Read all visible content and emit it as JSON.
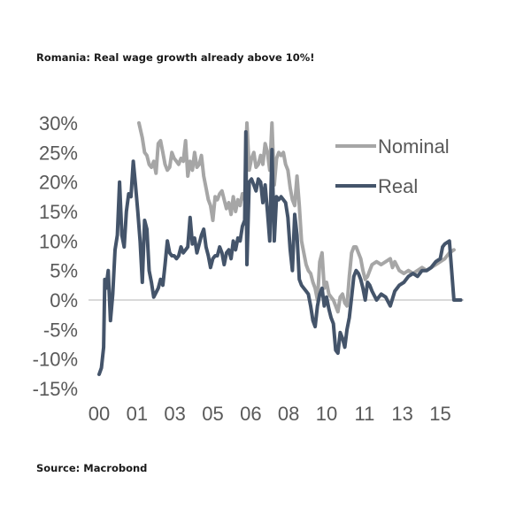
{
  "title": "Romania: Real wage growth already above 10%!",
  "source": "Source: Macrobond",
  "chart_data": {
    "type": "line",
    "title": "Romania: Real wage growth already above 10%!",
    "xlabel": "",
    "ylabel": "",
    "ylim": [
      -15,
      30
    ],
    "xlim": [
      2000.0,
      2016.5
    ],
    "y_ticks": [
      30,
      25,
      20,
      15,
      10,
      5,
      0,
      -5,
      -10,
      -15
    ],
    "y_tick_labels": [
      "30%",
      "25%",
      "20%",
      "15%",
      "10%",
      "5%",
      "0%",
      "-5%",
      "-10%",
      "-15%"
    ],
    "x_ticks": [
      2000.0,
      2001.67,
      2003.33,
      2005.0,
      2006.67,
      2008.33,
      2010.0,
      2011.67,
      2013.33,
      2015.0
    ],
    "x_tick_labels": [
      "00",
      "01",
      "03",
      "05",
      "06",
      "08",
      "10",
      "11",
      "13",
      "15"
    ],
    "grid": false,
    "zero_line": true,
    "legend": {
      "placement": "top-right",
      "entries": [
        "Nominal",
        "Real"
      ]
    },
    "series": [
      {
        "name": "Nominal",
        "color": "#a6a6a6",
        "points": [
          [
            2001.75,
            30.0
          ],
          [
            2001.9,
            27.5
          ],
          [
            2002.0,
            25.0
          ],
          [
            2002.1,
            24.5
          ],
          [
            2002.2,
            23.0
          ],
          [
            2002.3,
            22.5
          ],
          [
            2002.4,
            23.5
          ],
          [
            2002.5,
            21.5
          ],
          [
            2002.6,
            26.5
          ],
          [
            2002.7,
            27.0
          ],
          [
            2002.8,
            25.0
          ],
          [
            2002.9,
            23.0
          ],
          [
            2003.0,
            22.0
          ],
          [
            2003.1,
            22.5
          ],
          [
            2003.2,
            25.0
          ],
          [
            2003.3,
            24.0
          ],
          [
            2003.4,
            23.5
          ],
          [
            2003.5,
            23.0
          ],
          [
            2003.6,
            24.0
          ],
          [
            2003.7,
            23.5
          ],
          [
            2003.8,
            27.0
          ],
          [
            2003.9,
            21.0
          ],
          [
            2004.0,
            23.5
          ],
          [
            2004.1,
            22.0
          ],
          [
            2004.2,
            25.0
          ],
          [
            2004.3,
            22.5
          ],
          [
            2004.4,
            23.0
          ],
          [
            2004.5,
            24.5
          ],
          [
            2004.6,
            21.0
          ],
          [
            2004.7,
            19.0
          ],
          [
            2004.8,
            17.0
          ],
          [
            2004.9,
            16.0
          ],
          [
            2005.0,
            13.5
          ],
          [
            2005.1,
            17.5
          ],
          [
            2005.2,
            17.0
          ],
          [
            2005.3,
            18.0
          ],
          [
            2005.4,
            18.5
          ],
          [
            2005.5,
            17.0
          ],
          [
            2005.6,
            15.5
          ],
          [
            2005.7,
            16.5
          ],
          [
            2005.8,
            14.5
          ],
          [
            2005.9,
            17.5
          ],
          [
            2006.0,
            15.0
          ],
          [
            2006.1,
            17.0
          ],
          [
            2006.2,
            16.0
          ],
          [
            2006.3,
            18.0
          ],
          [
            2006.4,
            17.0
          ],
          [
            2006.5,
            30.0
          ],
          [
            2006.6,
            22.0
          ],
          [
            2006.7,
            24.0
          ],
          [
            2006.8,
            25.0
          ],
          [
            2006.9,
            22.5
          ],
          [
            2007.0,
            23.0
          ],
          [
            2007.1,
            24.5
          ],
          [
            2007.2,
            23.0
          ],
          [
            2007.3,
            26.5
          ],
          [
            2007.4,
            25.0
          ],
          [
            2007.5,
            22.0
          ],
          [
            2007.6,
            30.0
          ],
          [
            2007.7,
            19.5
          ],
          [
            2007.8,
            24.0
          ],
          [
            2007.9,
            25.0
          ],
          [
            2008.0,
            24.5
          ],
          [
            2008.1,
            25.0
          ],
          [
            2008.2,
            23.0
          ],
          [
            2008.3,
            22.0
          ],
          [
            2008.4,
            19.0
          ],
          [
            2008.5,
            17.0
          ],
          [
            2008.6,
            16.0
          ],
          [
            2008.7,
            21.0
          ],
          [
            2008.8,
            16.0
          ],
          [
            2008.9,
            10.0
          ],
          [
            2009.0,
            8.0
          ],
          [
            2009.1,
            6.0
          ],
          [
            2009.2,
            5.0
          ],
          [
            2009.3,
            4.5
          ],
          [
            2009.4,
            3.0
          ],
          [
            2009.5,
            2.0
          ],
          [
            2009.6,
            0.0
          ],
          [
            2009.7,
            6.5
          ],
          [
            2009.8,
            8.0
          ],
          [
            2009.9,
            2.0
          ],
          [
            2010.0,
            3.0
          ],
          [
            2010.1,
            1.0
          ],
          [
            2010.2,
            0.5
          ],
          [
            2010.3,
            0.0
          ],
          [
            2010.4,
            -1.0
          ],
          [
            2010.5,
            -2.0
          ],
          [
            2010.6,
            0.5
          ],
          [
            2010.7,
            1.0
          ],
          [
            2010.8,
            -0.5
          ],
          [
            2010.9,
            -1.0
          ],
          [
            2011.0,
            4.0
          ],
          [
            2011.1,
            8.0
          ],
          [
            2011.2,
            9.0
          ],
          [
            2011.3,
            9.0
          ],
          [
            2011.4,
            8.0
          ],
          [
            2011.5,
            7.0
          ],
          [
            2011.6,
            5.0
          ],
          [
            2011.7,
            3.5
          ],
          [
            2011.8,
            4.0
          ],
          [
            2011.9,
            5.0
          ],
          [
            2012.0,
            6.0
          ],
          [
            2012.2,
            6.5
          ],
          [
            2012.4,
            6.0
          ],
          [
            2012.6,
            6.5
          ],
          [
            2012.8,
            7.0
          ],
          [
            2012.9,
            5.5
          ],
          [
            2013.0,
            6.5
          ],
          [
            2013.2,
            5.0
          ],
          [
            2013.4,
            4.5
          ],
          [
            2013.6,
            5.0
          ],
          [
            2013.8,
            4.5
          ],
          [
            2014.0,
            5.0
          ],
          [
            2014.2,
            5.5
          ],
          [
            2014.4,
            5.0
          ],
          [
            2014.6,
            5.5
          ],
          [
            2014.8,
            6.0
          ],
          [
            2015.0,
            6.5
          ],
          [
            2015.2,
            7.0
          ],
          [
            2015.4,
            8.0
          ],
          [
            2015.6,
            8.5
          ]
        ]
      },
      {
        "name": "Real",
        "color": "#44546a",
        "points": [
          [
            2000.0,
            -12.6
          ],
          [
            2000.1,
            -11.5
          ],
          [
            2000.2,
            -8.0
          ],
          [
            2000.25,
            3.5
          ],
          [
            2000.3,
            2.0
          ],
          [
            2000.4,
            5.0
          ],
          [
            2000.5,
            -3.5
          ],
          [
            2000.6,
            1.0
          ],
          [
            2000.7,
            8.5
          ],
          [
            2000.8,
            11.0
          ],
          [
            2000.9,
            20.0
          ],
          [
            2001.0,
            11.0
          ],
          [
            2001.1,
            9.0
          ],
          [
            2001.2,
            15.0
          ],
          [
            2001.3,
            18.0
          ],
          [
            2001.4,
            17.5
          ],
          [
            2001.5,
            23.5
          ],
          [
            2001.6,
            19.5
          ],
          [
            2001.7,
            15.0
          ],
          [
            2001.8,
            10.0
          ],
          [
            2001.9,
            3.0
          ],
          [
            2002.0,
            13.5
          ],
          [
            2002.1,
            12.0
          ],
          [
            2002.2,
            5.0
          ],
          [
            2002.3,
            3.0
          ],
          [
            2002.4,
            0.5
          ],
          [
            2002.6,
            2.0
          ],
          [
            2002.7,
            3.5
          ],
          [
            2002.8,
            2.5
          ],
          [
            2002.9,
            6.0
          ],
          [
            2003.0,
            10.0
          ],
          [
            2003.1,
            8.0
          ],
          [
            2003.2,
            7.5
          ],
          [
            2003.3,
            7.5
          ],
          [
            2003.4,
            7.0
          ],
          [
            2003.5,
            7.5
          ],
          [
            2003.6,
            9.0
          ],
          [
            2003.7,
            8.0
          ],
          [
            2003.8,
            8.5
          ],
          [
            2003.9,
            9.0
          ],
          [
            2004.0,
            14.0
          ],
          [
            2004.1,
            9.5
          ],
          [
            2004.2,
            10.5
          ],
          [
            2004.3,
            8.0
          ],
          [
            2004.4,
            9.5
          ],
          [
            2004.5,
            11.0
          ],
          [
            2004.6,
            12.0
          ],
          [
            2004.7,
            9.0
          ],
          [
            2004.8,
            7.5
          ],
          [
            2004.9,
            5.5
          ],
          [
            2005.0,
            7.0
          ],
          [
            2005.1,
            7.5
          ],
          [
            2005.2,
            7.5
          ],
          [
            2005.3,
            9.0
          ],
          [
            2005.4,
            8.0
          ],
          [
            2005.5,
            6.0
          ],
          [
            2005.6,
            8.0
          ],
          [
            2005.7,
            8.5
          ],
          [
            2005.8,
            7.0
          ],
          [
            2005.9,
            10.0
          ],
          [
            2006.0,
            8.5
          ],
          [
            2006.1,
            10.5
          ],
          [
            2006.2,
            10.0
          ],
          [
            2006.3,
            12.5
          ],
          [
            2006.4,
            13.5
          ],
          [
            2006.45,
            28.5
          ],
          [
            2006.5,
            6.0
          ],
          [
            2006.6,
            20.0
          ],
          [
            2006.7,
            20.5
          ],
          [
            2006.8,
            19.5
          ],
          [
            2006.9,
            18.5
          ],
          [
            2007.0,
            20.5
          ],
          [
            2007.1,
            20.0
          ],
          [
            2007.2,
            16.5
          ],
          [
            2007.3,
            19.5
          ],
          [
            2007.4,
            15.0
          ],
          [
            2007.5,
            10.0
          ],
          [
            2007.6,
            25.5
          ],
          [
            2007.7,
            10.0
          ],
          [
            2007.8,
            17.5
          ],
          [
            2007.9,
            17.0
          ],
          [
            2008.0,
            17.5
          ],
          [
            2008.1,
            17.0
          ],
          [
            2008.2,
            16.5
          ],
          [
            2008.3,
            14.0
          ],
          [
            2008.4,
            8.5
          ],
          [
            2008.5,
            5.0
          ],
          [
            2008.6,
            14.5
          ],
          [
            2008.7,
            11.0
          ],
          [
            2008.8,
            3.5
          ],
          [
            2008.9,
            2.5
          ],
          [
            2009.0,
            2.0
          ],
          [
            2009.1,
            1.5
          ],
          [
            2009.2,
            1.0
          ],
          [
            2009.3,
            -1.0
          ],
          [
            2009.4,
            -3.5
          ],
          [
            2009.5,
            -4.5
          ],
          [
            2009.6,
            -1.0
          ],
          [
            2009.7,
            1.0
          ],
          [
            2009.8,
            2.0
          ],
          [
            2009.9,
            -1.0
          ],
          [
            2010.0,
            0.5
          ],
          [
            2010.1,
            -1.5
          ],
          [
            2010.2,
            -3.0
          ],
          [
            2010.3,
            -4.0
          ],
          [
            2010.4,
            -8.5
          ],
          [
            2010.5,
            -9.0
          ],
          [
            2010.6,
            -5.5
          ],
          [
            2010.7,
            -6.5
          ],
          [
            2010.8,
            -8.0
          ],
          [
            2010.9,
            -5.0
          ],
          [
            2011.0,
            -3.0
          ],
          [
            2011.1,
            0.5
          ],
          [
            2011.2,
            4.0
          ],
          [
            2011.3,
            5.0
          ],
          [
            2011.4,
            4.5
          ],
          [
            2011.5,
            3.5
          ],
          [
            2011.6,
            2.0
          ],
          [
            2011.7,
            0.0
          ],
          [
            2011.8,
            3.0
          ],
          [
            2011.9,
            2.5
          ],
          [
            2012.0,
            1.5
          ],
          [
            2012.2,
            0.0
          ],
          [
            2012.4,
            1.0
          ],
          [
            2012.6,
            0.5
          ],
          [
            2012.8,
            -1.0
          ],
          [
            2013.0,
            1.5
          ],
          [
            2013.2,
            2.5
          ],
          [
            2013.4,
            3.0
          ],
          [
            2013.6,
            4.0
          ],
          [
            2013.8,
            4.5
          ],
          [
            2014.0,
            4.0
          ],
          [
            2014.2,
            5.0
          ],
          [
            2014.4,
            5.0
          ],
          [
            2014.6,
            5.5
          ],
          [
            2014.8,
            6.5
          ],
          [
            2015.0,
            7.0
          ],
          [
            2015.1,
            9.0
          ],
          [
            2015.2,
            9.5
          ],
          [
            2015.4,
            10.0
          ],
          [
            2015.6,
            0.0
          ],
          [
            2015.9,
            0.0
          ]
        ]
      }
    ]
  }
}
